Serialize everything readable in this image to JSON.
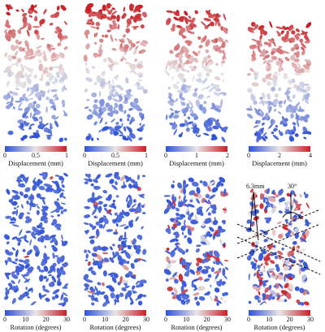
{
  "colors": {
    "low": "#2f52d8",
    "mid": "#e9e6e6",
    "high": "#c81f25"
  },
  "top_row": [
    {
      "label": "Displacement (mm)",
      "ticks": [
        "0",
        "0.5",
        "1"
      ],
      "max": 1
    },
    {
      "label": "Displacement (mm)",
      "ticks": [
        "0",
        "0.5",
        "1"
      ],
      "max": 1
    },
    {
      "label": "Displacement (mm)",
      "ticks": [
        "0",
        "1",
        "2"
      ],
      "max": 2
    },
    {
      "label": "Displacement (mm)",
      "ticks": [
        "0",
        "2",
        "4"
      ],
      "max": 4
    }
  ],
  "bottom_row": [
    {
      "label": "Rotation (degrees)",
      "ticks": [
        "0",
        "10",
        "20",
        "30"
      ],
      "max": 30
    },
    {
      "label": "Rotation (degrees)",
      "ticks": [
        "0",
        "10",
        "20",
        "30"
      ],
      "max": 30
    },
    {
      "label": "Rotation (degrees)",
      "ticks": [
        "0",
        "10",
        "20",
        "30"
      ],
      "max": 30
    },
    {
      "label": "Rotation (degrees)",
      "ticks": [
        "0",
        "10",
        "20",
        "30"
      ],
      "max": 30
    }
  ],
  "annotations": {
    "width_label": "6.3mm",
    "angle_label": "30°"
  }
}
